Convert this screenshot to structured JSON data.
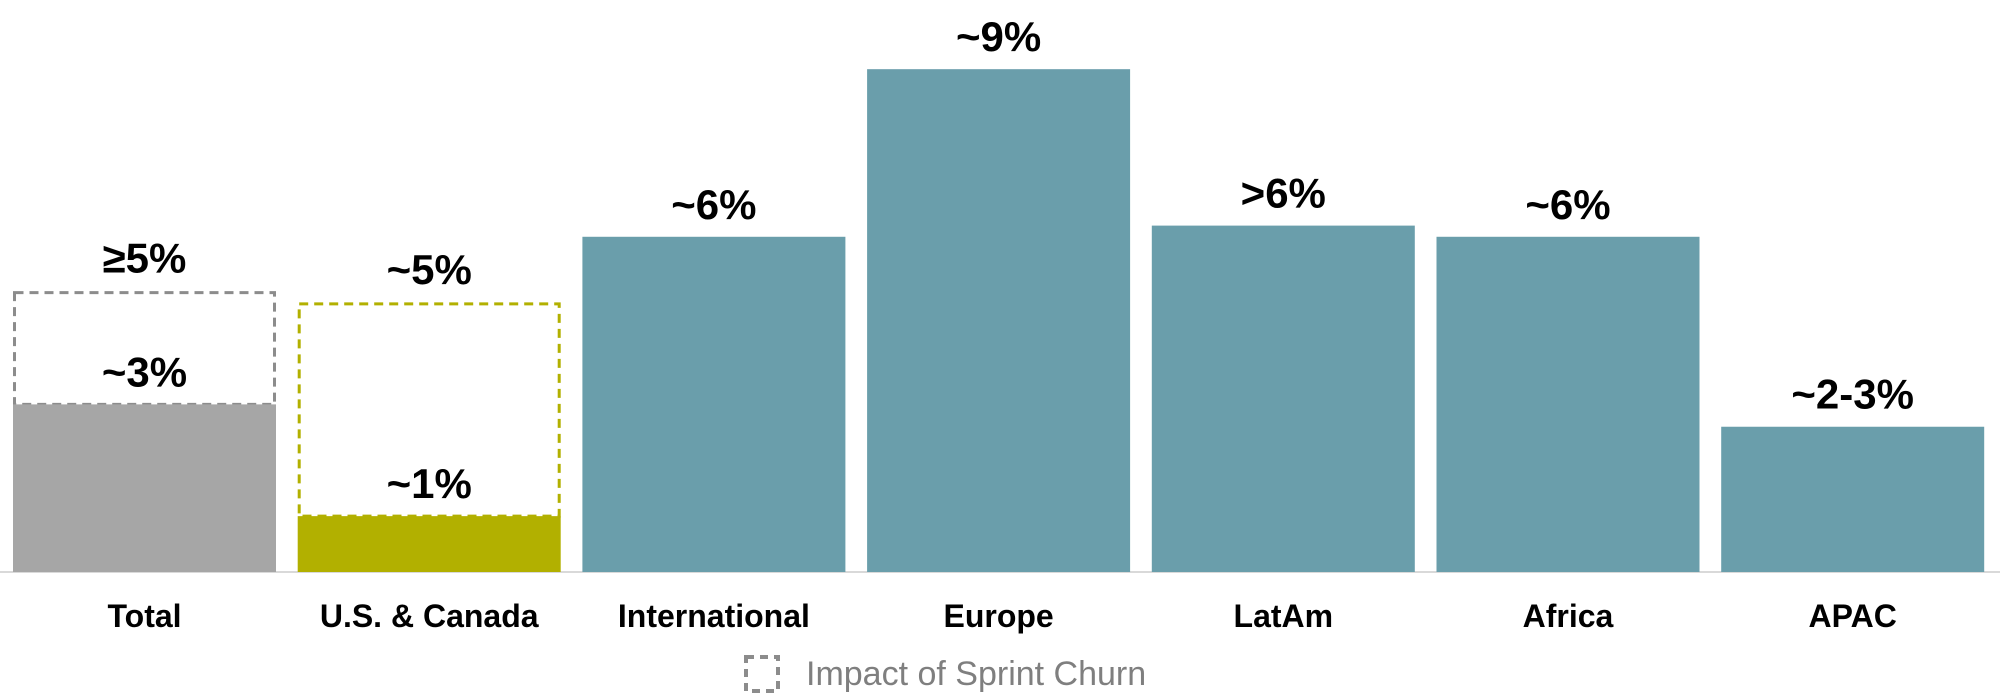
{
  "chart_data": {
    "type": "bar",
    "categories": [
      "Total",
      "U.S. & Canada",
      "International",
      "Europe",
      "LatAm",
      "Africa",
      "APAC"
    ],
    "values": [
      3,
      1,
      6,
      9,
      6.2,
      6,
      2.6
    ],
    "value_labels": [
      "~3%",
      "~1%",
      "~6%",
      "~9%",
      ">6%",
      "~6%",
      "~2-3%"
    ],
    "sprint_churn_impact": [
      {
        "category": "Total",
        "top_value": 5,
        "label": "≥5%"
      },
      {
        "category": "U.S. & Canada",
        "top_value": 4.8,
        "label": "~5%"
      }
    ],
    "legend": {
      "label": "Impact of Sprint Churn",
      "placement": "bottom-center"
    },
    "ylim": [
      0,
      9.2
    ],
    "grid": false,
    "title": "",
    "xlabel": "",
    "ylabel": "",
    "colors": {
      "total": "#a6a6a6",
      "us_canada": "#b2b000",
      "regions": "#6a9eab",
      "total_impact_outline": "#8c8c8c",
      "us_canada_impact_outline": "#b2b000",
      "legend_box": "#8c8c8c",
      "axis": "#d9d9d9"
    }
  }
}
